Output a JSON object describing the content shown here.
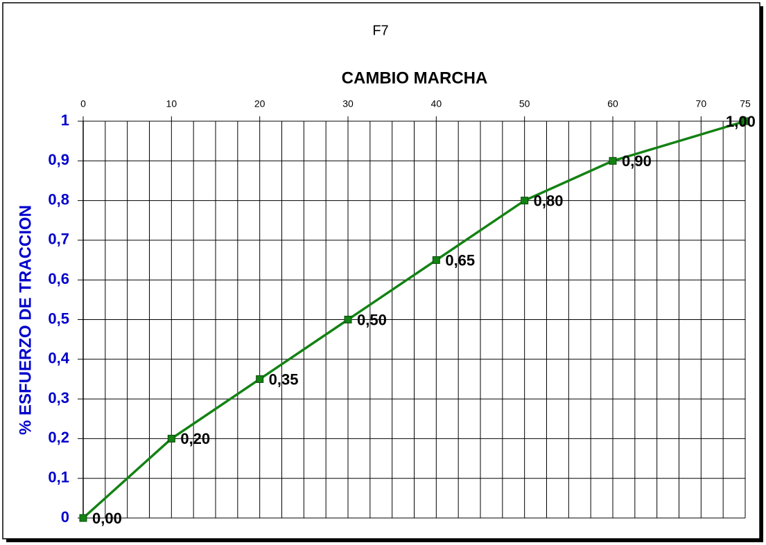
{
  "chart_data": {
    "type": "line",
    "title": "F7",
    "x_label": "CAMBIO MARCHA",
    "y_label": "% ESFUERZO DE TRACCION",
    "x": [
      0,
      10,
      20,
      30,
      40,
      50,
      60,
      75
    ],
    "series": [
      {
        "color": "#138213",
        "values": [
          0,
          0.2,
          0.35,
          0.5,
          0.65,
          0.8,
          0.9,
          1
        ],
        "value_labels": [
          "0,00",
          "0,20",
          "0,35",
          "0,50",
          "0,65",
          "0,80",
          "0,90",
          "1,00"
        ]
      }
    ],
    "xlim": [
      0,
      75
    ],
    "xticks": [
      0,
      10,
      20,
      30,
      40,
      50,
      60,
      70,
      75
    ],
    "x_grid_step": 2.5,
    "ylim": [
      0,
      1
    ],
    "yticks": [
      0,
      {
        "value": 0.1,
        "label": "0,1"
      },
      {
        "value": 0.2,
        "label": "0,2"
      },
      {
        "value": 0.3,
        "label": "0,3"
      },
      {
        "value": 0.4,
        "label": "0,4"
      },
      {
        "value": 0.5,
        "label": "0,5"
      },
      {
        "value": 0.6,
        "label": "0,6"
      },
      {
        "value": 0.7,
        "label": "0,7"
      },
      {
        "value": 0.8,
        "label": "0,8"
      },
      {
        "value": 0.9,
        "label": "0,9"
      },
      1
    ],
    "grid": true,
    "tick_label_color": "#0000cc"
  }
}
